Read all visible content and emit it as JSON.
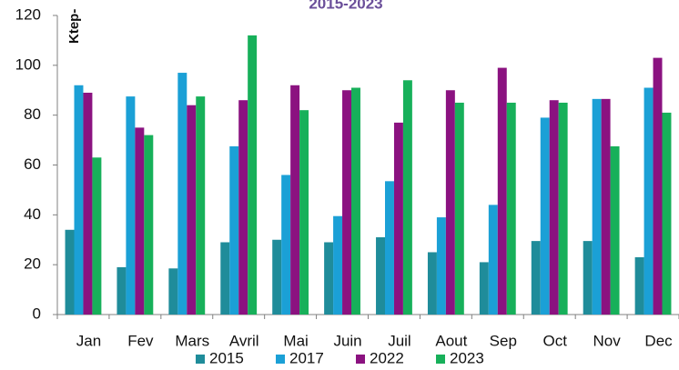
{
  "chart_data": {
    "type": "bar",
    "title": "2015-2023",
    "y_label": "Ktep-",
    "categories": [
      "Jan",
      "Fev",
      "Mars",
      "Avril",
      "Mai",
      "Juin",
      "Juil",
      "Aout",
      "Sep",
      "Oct",
      "Nov",
      "Dec"
    ],
    "series": [
      {
        "name": "2015",
        "color": "#1f8c9a",
        "values": [
          34,
          19,
          18.5,
          29,
          30,
          29,
          31,
          25,
          21,
          29.5,
          29.5,
          23
        ]
      },
      {
        "name": "2017",
        "color": "#1ba0d6",
        "values": [
          92,
          87.5,
          97,
          67.5,
          56,
          39.5,
          53.5,
          39,
          44,
          79,
          86.5,
          91
        ]
      },
      {
        "name": "2022",
        "color": "#8b1280",
        "values": [
          89,
          75,
          84,
          86,
          92,
          90,
          77,
          90,
          99,
          86,
          86.5,
          103
        ]
      },
      {
        "name": "2023",
        "color": "#17b05a",
        "values": [
          63,
          72,
          87.5,
          112,
          82,
          91,
          94,
          85,
          85,
          85,
          67.5,
          81
        ]
      }
    ],
    "ylim": [
      0,
      120
    ],
    "yticks": [
      0,
      20,
      40,
      60,
      80,
      100,
      120
    ],
    "grid": false,
    "legend": "bottom"
  }
}
